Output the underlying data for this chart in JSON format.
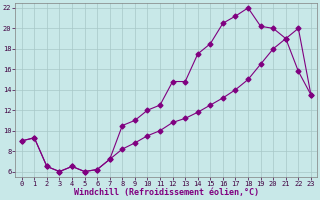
{
  "xlabel": "Windchill (Refroidissement éolien,°C)",
  "line_color": "#800080",
  "background_color": "#c8e8e8",
  "grid_color": "#a8c8c8",
  "xlim": [
    -0.5,
    23.5
  ],
  "ylim": [
    5.5,
    22.5
  ],
  "xticks": [
    0,
    1,
    2,
    3,
    4,
    5,
    6,
    7,
    8,
    9,
    10,
    11,
    12,
    13,
    14,
    15,
    16,
    17,
    18,
    19,
    20,
    21,
    22,
    23
  ],
  "yticks": [
    6,
    8,
    10,
    12,
    14,
    16,
    18,
    20,
    22
  ],
  "series1_x": [
    0,
    1,
    2,
    3,
    4,
    5,
    6,
    7,
    8,
    9,
    10,
    11,
    12,
    13,
    14,
    15,
    16,
    17,
    18,
    19,
    20,
    21,
    22,
    23
  ],
  "series1_y": [
    9.0,
    9.3,
    6.5,
    6.0,
    6.5,
    6.0,
    6.2,
    7.2,
    10.5,
    11.0,
    12.0,
    12.5,
    14.8,
    14.8,
    17.5,
    18.5,
    20.5,
    21.2,
    22.0,
    20.2,
    20.0,
    19.0,
    15.8,
    13.5
  ],
  "series2_x": [
    0,
    1,
    2,
    3,
    4,
    5,
    6,
    7,
    8,
    9,
    10,
    11,
    12,
    13,
    14,
    15,
    16,
    17,
    18,
    19,
    20,
    21,
    22,
    23
  ],
  "series2_y": [
    9.0,
    9.3,
    6.5,
    6.0,
    6.5,
    6.0,
    6.2,
    7.2,
    8.2,
    8.8,
    9.5,
    10.0,
    10.8,
    11.2,
    11.8,
    12.5,
    13.2,
    14.0,
    15.0,
    16.5,
    18.0,
    19.0,
    20.0,
    13.5
  ],
  "marker": "D",
  "markersize": 2.5,
  "linewidth": 0.8,
  "tick_fontsize": 5.0,
  "xlabel_fontsize": 6.0
}
